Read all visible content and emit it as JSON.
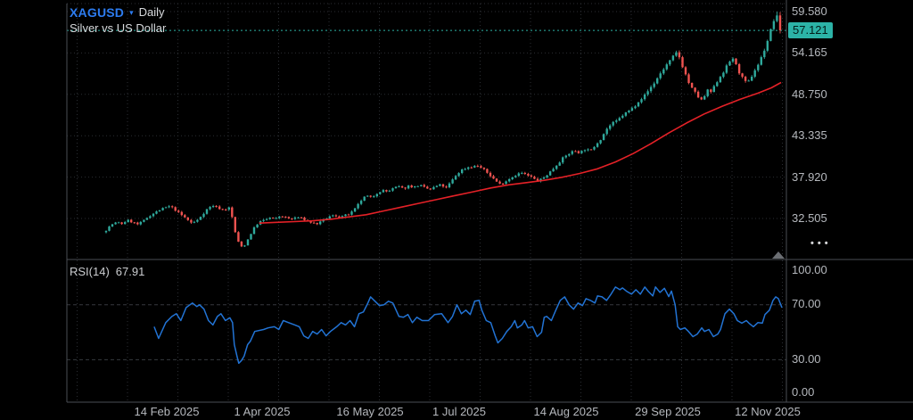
{
  "header": {
    "symbol": "XAGUSD",
    "dropdown_caret": "▾",
    "timeframe": "Daily",
    "description": "Silver vs US Dollar"
  },
  "rsi_panel": {
    "label": "RSI(14)",
    "value": "67.91"
  },
  "price_axis": {
    "ticks": [
      "59.580",
      "54.165",
      "48.750",
      "43.335",
      "37.920",
      "32.505"
    ],
    "last_price": "57.121",
    "more_button": "•••"
  },
  "rsi_axis": {
    "ticks": [
      "100.00",
      "70.00",
      "30.00",
      "0.00"
    ]
  },
  "time_axis": {
    "labels": [
      "14 Feb 2025",
      "1 Apr 2025",
      "16 May 2025",
      "1 Jul 2025",
      "14 Aug 2025",
      "29 Sep 2025",
      "12 Nov 2025"
    ]
  },
  "colors": {
    "background": "#000000",
    "up_candle": "#2fa99c",
    "down_candle": "#ef5350",
    "ma_line": "#e42127",
    "rsi_line": "#2273d4",
    "price_line": "#2cb3a7",
    "price_label_bg": "#2cb3a7",
    "axis_text": "#b5b8bd",
    "grid": "#2b2e33",
    "rsi_level_grid": "#36393e",
    "border": "#4a4e54",
    "symbol_blue": "#2d7cf0"
  },
  "chart_data": [
    {
      "type": "candlestick",
      "symbol": "XAGUSD",
      "timeframe": "Daily",
      "title": "Silver vs US Dollar",
      "last_price": 57.121,
      "bar_count": 215,
      "y_ticks": [
        59.58,
        54.165,
        48.75,
        43.335,
        37.92,
        32.505
      ],
      "ylim_est": [
        27.0,
        60.8
      ],
      "x_tick_labels": [
        "14 Feb 2025",
        "1 Apr 2025",
        "16 May 2025",
        "1 Jul 2025",
        "14 Aug 2025",
        "29 Sep 2025",
        "12 Nov 2025"
      ],
      "x_tick_positions": [
        0.1388,
        0.2714,
        0.4213,
        0.5452,
        0.6939,
        0.8352,
        0.974
      ],
      "grid": true,
      "legend_position": "top-left",
      "close_path": [
        [
          0.0545,
          31.0
        ],
        [
          0.0619,
          31.7
        ],
        [
          0.0693,
          32.0
        ],
        [
          0.0767,
          31.8
        ],
        [
          0.0842,
          32.3
        ],
        [
          0.0916,
          32.0
        ],
        [
          0.099,
          31.7
        ],
        [
          0.1064,
          32.2
        ],
        [
          0.1139,
          32.8
        ],
        [
          0.1213,
          33.2
        ],
        [
          0.1287,
          33.6
        ],
        [
          0.1361,
          33.9
        ],
        [
          0.1436,
          34.1
        ],
        [
          0.151,
          33.6
        ],
        [
          0.1584,
          33.0
        ],
        [
          0.1658,
          32.5
        ],
        [
          0.1733,
          31.9
        ],
        [
          0.1807,
          32.2
        ],
        [
          0.1881,
          33.0
        ],
        [
          0.1955,
          33.8
        ],
        [
          0.203,
          34.2
        ],
        [
          0.2104,
          33.9
        ],
        [
          0.2178,
          33.6
        ],
        [
          0.2252,
          33.9
        ],
        [
          0.2302,
          32.5
        ],
        [
          0.2351,
          30.2
        ],
        [
          0.2401,
          29.0
        ],
        [
          0.245,
          28.7
        ],
        [
          0.25,
          29.5
        ],
        [
          0.2562,
          30.6
        ],
        [
          0.2624,
          31.6
        ],
        [
          0.2686,
          32.1
        ],
        [
          0.2748,
          32.3
        ],
        [
          0.2822,
          32.6
        ],
        [
          0.2896,
          32.4
        ],
        [
          0.297,
          32.9
        ],
        [
          0.3045,
          32.6
        ],
        [
          0.3119,
          32.4
        ],
        [
          0.3193,
          32.7
        ],
        [
          0.3267,
          32.5
        ],
        [
          0.3342,
          32.2
        ],
        [
          0.3416,
          31.9
        ],
        [
          0.349,
          31.8
        ],
        [
          0.3564,
          32.3
        ],
        [
          0.3639,
          32.7
        ],
        [
          0.3713,
          32.9
        ],
        [
          0.3787,
          32.7
        ],
        [
          0.3861,
          32.9
        ],
        [
          0.3936,
          33.1
        ],
        [
          0.401,
          33.8
        ],
        [
          0.4084,
          34.8
        ],
        [
          0.4158,
          35.5
        ],
        [
          0.4233,
          35.2
        ],
        [
          0.4307,
          35.8
        ],
        [
          0.4381,
          36.2
        ],
        [
          0.4455,
          36.0
        ],
        [
          0.453,
          36.4
        ],
        [
          0.4604,
          36.7
        ],
        [
          0.4678,
          36.4
        ],
        [
          0.4752,
          36.8
        ],
        [
          0.4827,
          36.6
        ],
        [
          0.4901,
          36.9
        ],
        [
          0.4975,
          36.5
        ],
        [
          0.505,
          36.3
        ],
        [
          0.5124,
          36.7
        ],
        [
          0.5198,
          36.9
        ],
        [
          0.5272,
          36.5
        ],
        [
          0.5347,
          37.4
        ],
        [
          0.5421,
          38.3
        ],
        [
          0.5495,
          38.9
        ],
        [
          0.5569,
          39.2
        ],
        [
          0.5644,
          39.3
        ],
        [
          0.5718,
          39.4
        ],
        [
          0.5792,
          38.9
        ],
        [
          0.5866,
          38.3
        ],
        [
          0.5941,
          37.6
        ],
        [
          0.6015,
          37.0
        ],
        [
          0.6089,
          37.3
        ],
        [
          0.6163,
          37.8
        ],
        [
          0.6238,
          38.2
        ],
        [
          0.6312,
          38.5
        ],
        [
          0.6386,
          38.2
        ],
        [
          0.646,
          37.9
        ],
        [
          0.6535,
          37.4
        ],
        [
          0.6609,
          37.7
        ],
        [
          0.6683,
          38.3
        ],
        [
          0.6757,
          39.0
        ],
        [
          0.6832,
          39.8
        ],
        [
          0.6906,
          40.5
        ],
        [
          0.698,
          41.0
        ],
        [
          0.7054,
          41.4
        ],
        [
          0.7129,
          41.1
        ],
        [
          0.7203,
          41.6
        ],
        [
          0.7277,
          41.3
        ],
        [
          0.7351,
          42.2
        ],
        [
          0.7426,
          43.0
        ],
        [
          0.75,
          44.2
        ],
        [
          0.7574,
          44.9
        ],
        [
          0.7649,
          45.3
        ],
        [
          0.7723,
          46.0
        ],
        [
          0.7797,
          46.5
        ],
        [
          0.7871,
          47.0
        ],
        [
          0.7946,
          47.9
        ],
        [
          0.802,
          48.5
        ],
        [
          0.8094,
          49.4
        ],
        [
          0.8168,
          50.3
        ],
        [
          0.8243,
          51.4
        ],
        [
          0.8317,
          52.4
        ],
        [
          0.8391,
          53.2
        ],
        [
          0.8465,
          54.2
        ],
        [
          0.8515,
          53.6
        ],
        [
          0.8564,
          52.2
        ],
        [
          0.8614,
          51.0
        ],
        [
          0.8663,
          49.8
        ],
        [
          0.8713,
          49.2
        ],
        [
          0.8762,
          48.6
        ],
        [
          0.8812,
          47.9
        ],
        [
          0.8861,
          48.5
        ],
        [
          0.8911,
          49.3
        ],
        [
          0.896,
          49.0
        ],
        [
          0.901,
          50.0
        ],
        [
          0.9059,
          50.8
        ],
        [
          0.9109,
          51.5
        ],
        [
          0.9158,
          52.2
        ],
        [
          0.9208,
          53.0
        ],
        [
          0.9257,
          53.5
        ],
        [
          0.9307,
          52.4
        ],
        [
          0.9356,
          51.4
        ],
        [
          0.9406,
          50.6
        ],
        [
          0.9455,
          50.1
        ],
        [
          0.9505,
          50.9
        ],
        [
          0.9554,
          51.8
        ],
        [
          0.9604,
          52.6
        ],
        [
          0.9653,
          53.6
        ],
        [
          0.9703,
          54.8
        ],
        [
          0.9752,
          56.2
        ],
        [
          0.9802,
          57.8
        ],
        [
          0.9839,
          58.8
        ],
        [
          0.9876,
          58.9
        ],
        [
          0.9913,
          57.121
        ]
      ],
      "ma": {
        "name": "MA (red)",
        "path": [
          [
            0.2673,
            31.9
          ],
          [
            0.2921,
            32.0
          ],
          [
            0.3168,
            32.1
          ],
          [
            0.3416,
            32.2
          ],
          [
            0.3663,
            32.4
          ],
          [
            0.3911,
            32.7
          ],
          [
            0.4158,
            33.0
          ],
          [
            0.4406,
            33.5
          ],
          [
            0.4653,
            34.0
          ],
          [
            0.4901,
            34.5
          ],
          [
            0.5148,
            35.0
          ],
          [
            0.5396,
            35.5
          ],
          [
            0.5644,
            36.0
          ],
          [
            0.5891,
            36.5
          ],
          [
            0.6139,
            36.9
          ],
          [
            0.6386,
            37.2
          ],
          [
            0.6634,
            37.5
          ],
          [
            0.6881,
            37.9
          ],
          [
            0.7129,
            38.4
          ],
          [
            0.7376,
            39.0
          ],
          [
            0.7624,
            39.9
          ],
          [
            0.7871,
            41.0
          ],
          [
            0.8119,
            42.3
          ],
          [
            0.8366,
            43.7
          ],
          [
            0.8614,
            45.0
          ],
          [
            0.8861,
            46.2
          ],
          [
            0.9109,
            47.2
          ],
          [
            0.9356,
            48.1
          ],
          [
            0.9604,
            48.9
          ],
          [
            0.979,
            49.6
          ],
          [
            0.9926,
            50.3
          ]
        ]
      }
    },
    {
      "type": "line",
      "name": "RSI(14)",
      "last_value": 67.91,
      "ylim": [
        0,
        100
      ],
      "y_ticks": [
        100,
        70,
        30,
        0
      ],
      "overbought": 70,
      "oversold": 30,
      "path": [
        [
          0.1213,
          54
        ],
        [
          0.1275,
          45.5
        ],
        [
          0.1374,
          57
        ],
        [
          0.146,
          61.5
        ],
        [
          0.1522,
          63.5
        ],
        [
          0.1584,
          58.5
        ],
        [
          0.1658,
          68
        ],
        [
          0.1745,
          71.3
        ],
        [
          0.1807,
          68.7
        ],
        [
          0.1844,
          70
        ],
        [
          0.1906,
          66.8
        ],
        [
          0.1968,
          58.5
        ],
        [
          0.203,
          55.3
        ],
        [
          0.2092,
          61.5
        ],
        [
          0.2141,
          63.5
        ],
        [
          0.2203,
          58.5
        ],
        [
          0.2265,
          60.5
        ],
        [
          0.2302,
          57
        ],
        [
          0.2327,
          41
        ],
        [
          0.2364,
          32.6
        ],
        [
          0.2389,
          27.4
        ],
        [
          0.2426,
          29.4
        ],
        [
          0.2463,
          32.6
        ],
        [
          0.2512,
          41
        ],
        [
          0.255,
          43.5
        ],
        [
          0.2611,
          50.6
        ],
        [
          0.2735,
          52
        ],
        [
          0.2797,
          53.2
        ],
        [
          0.2884,
          54
        ],
        [
          0.2946,
          52
        ],
        [
          0.3007,
          58.5
        ],
        [
          0.3082,
          57
        ],
        [
          0.3168,
          55.3
        ],
        [
          0.323,
          54
        ],
        [
          0.3292,
          47.4
        ],
        [
          0.3354,
          45.5
        ],
        [
          0.3416,
          50.6
        ],
        [
          0.3478,
          48.7
        ],
        [
          0.354,
          52
        ],
        [
          0.3602,
          47.4
        ],
        [
          0.3663,
          50.6
        ],
        [
          0.375,
          54
        ],
        [
          0.3812,
          57
        ],
        [
          0.3874,
          55.3
        ],
        [
          0.3936,
          58.5
        ],
        [
          0.3998,
          54
        ],
        [
          0.4059,
          63.5
        ],
        [
          0.4121,
          64.8
        ],
        [
          0.4183,
          71.3
        ],
        [
          0.422,
          75.8
        ],
        [
          0.4282,
          72.6
        ],
        [
          0.4344,
          69.4
        ],
        [
          0.4406,
          70
        ],
        [
          0.4468,
          72.6
        ],
        [
          0.453,
          71.3
        ],
        [
          0.4616,
          61.5
        ],
        [
          0.4678,
          60.9
        ],
        [
          0.474,
          62.9
        ],
        [
          0.4802,
          57
        ],
        [
          0.4864,
          60.9
        ],
        [
          0.4938,
          58.5
        ],
        [
          0.5025,
          58.5
        ],
        [
          0.5111,
          62.9
        ],
        [
          0.521,
          63.5
        ],
        [
          0.5297,
          57
        ],
        [
          0.5359,
          61.5
        ],
        [
          0.5421,
          70
        ],
        [
          0.5483,
          63.5
        ],
        [
          0.5545,
          66.1
        ],
        [
          0.5606,
          62.9
        ],
        [
          0.5668,
          72.6
        ],
        [
          0.573,
          73.2
        ],
        [
          0.5767,
          66.1
        ],
        [
          0.5829,
          58.5
        ],
        [
          0.5891,
          57
        ],
        [
          0.5953,
          47.4
        ],
        [
          0.599,
          42.3
        ],
        [
          0.6052,
          45.5
        ],
        [
          0.6114,
          50.6
        ],
        [
          0.6176,
          54
        ],
        [
          0.6225,
          58.5
        ],
        [
          0.6262,
          53.2
        ],
        [
          0.6324,
          55.3
        ],
        [
          0.6361,
          58.5
        ],
        [
          0.6411,
          53.2
        ],
        [
          0.6473,
          54
        ],
        [
          0.6535,
          46.8
        ],
        [
          0.6597,
          50
        ],
        [
          0.6634,
          60.9
        ],
        [
          0.6671,
          61.5
        ],
        [
          0.6733,
          58.5
        ],
        [
          0.6795,
          66.1
        ],
        [
          0.6856,
          73.2
        ],
        [
          0.6918,
          75.8
        ],
        [
          0.698,
          70
        ],
        [
          0.7042,
          66.8
        ],
        [
          0.7104,
          71.3
        ],
        [
          0.7166,
          69.4
        ],
        [
          0.7215,
          74.5
        ],
        [
          0.7277,
          73.2
        ],
        [
          0.7339,
          71.3
        ],
        [
          0.7376,
          76.5
        ],
        [
          0.7438,
          75.8
        ],
        [
          0.75,
          73.2
        ],
        [
          0.7562,
          77.7
        ],
        [
          0.7624,
          82.9
        ],
        [
          0.7686,
          81
        ],
        [
          0.7723,
          82.3
        ],
        [
          0.7785,
          79.7
        ],
        [
          0.7847,
          77.7
        ],
        [
          0.7908,
          81
        ],
        [
          0.797,
          77.7
        ],
        [
          0.8032,
          82.9
        ],
        [
          0.8082,
          79.7
        ],
        [
          0.8144,
          76.5
        ],
        [
          0.8181,
          83
        ],
        [
          0.8243,
          79
        ],
        [
          0.8305,
          82
        ],
        [
          0.8366,
          76
        ],
        [
          0.8403,
          80
        ],
        [
          0.8453,
          70
        ],
        [
          0.849,
          54
        ],
        [
          0.8527,
          52
        ],
        [
          0.8589,
          53.2
        ],
        [
          0.8639,
          50.6
        ],
        [
          0.8701,
          46.8
        ],
        [
          0.8762,
          48.7
        ],
        [
          0.8824,
          53.2
        ],
        [
          0.8861,
          50.6
        ],
        [
          0.8923,
          52
        ],
        [
          0.8985,
          46.8
        ],
        [
          0.9047,
          48.7
        ],
        [
          0.9084,
          52
        ],
        [
          0.9146,
          63.5
        ],
        [
          0.9208,
          66.8
        ],
        [
          0.927,
          63.5
        ],
        [
          0.9319,
          58.5
        ],
        [
          0.9381,
          56.6
        ],
        [
          0.9443,
          58.5
        ],
        [
          0.948,
          56.6
        ],
        [
          0.9542,
          54
        ],
        [
          0.9604,
          57
        ],
        [
          0.9666,
          56.6
        ],
        [
          0.9703,
          62.9
        ],
        [
          0.9765,
          66.1
        ],
        [
          0.9814,
          73.2
        ],
        [
          0.9851,
          75.8
        ],
        [
          0.9888,
          74.5
        ],
        [
          0.9938,
          67.91
        ]
      ]
    }
  ]
}
